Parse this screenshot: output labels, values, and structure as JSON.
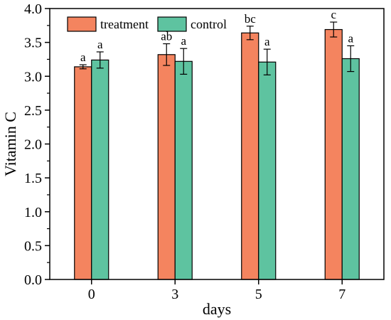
{
  "chart_data": {
    "type": "bar",
    "xlabel": "days",
    "ylabel": "Vitamin C",
    "categories": [
      "0",
      "3",
      "5",
      "7"
    ],
    "ylim": [
      0.0,
      4.0
    ],
    "yticks": [
      "0.0",
      "0.5",
      "1.0",
      "1.5",
      "2.0",
      "2.5",
      "3.0",
      "3.5",
      "4.0"
    ],
    "grid": false,
    "legend_position": "top-left",
    "series": [
      {
        "name": "treatment",
        "color": "#f4845f",
        "values": [
          3.14,
          3.32,
          3.64,
          3.69
        ],
        "errors": [
          0.03,
          0.16,
          0.1,
          0.11
        ],
        "labels": [
          "a",
          "ab",
          "bc",
          "c"
        ]
      },
      {
        "name": "control",
        "color": "#5ec3a0",
        "values": [
          3.24,
          3.22,
          3.21,
          3.26
        ],
        "errors": [
          0.12,
          0.19,
          0.19,
          0.19
        ],
        "labels": [
          "a",
          "a",
          "a",
          "a"
        ]
      }
    ]
  }
}
